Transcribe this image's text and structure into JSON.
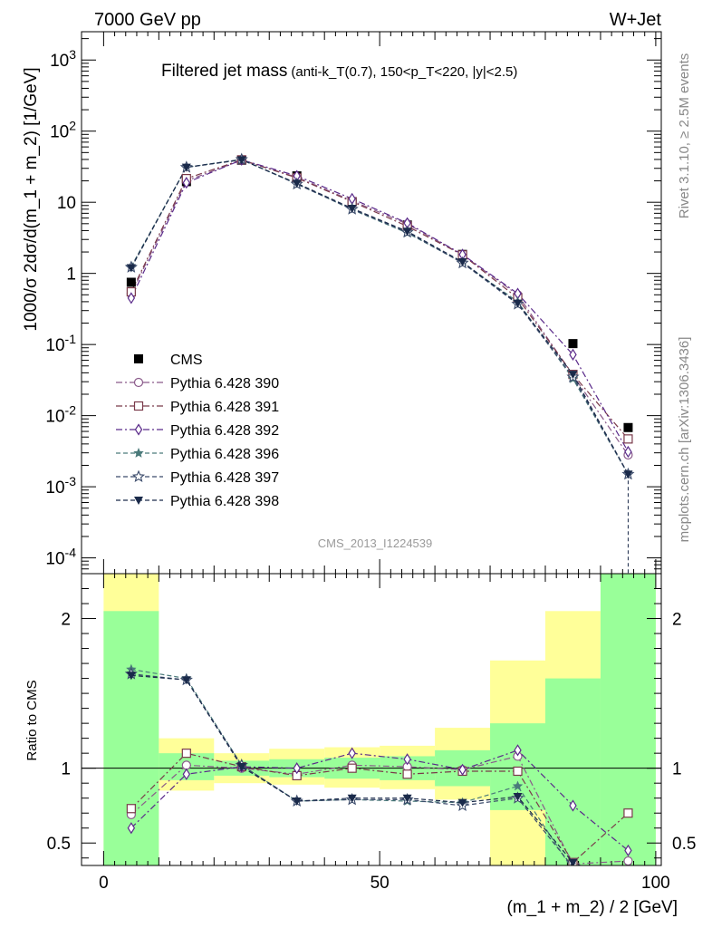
{
  "header": {
    "left": "7000 GeV pp",
    "right": "W+Jet"
  },
  "title": {
    "main": "Filtered jet mass",
    "sub": "(anti-k_T(0.7), 150<p_T<220, |y|<2.5)"
  },
  "side_labels": {
    "rivet": "Rivet 3.1.10, ≥ 2.5M events",
    "mcplots": "mcplots.cern.ch [arXiv:1306.3436]"
  },
  "analysis_id": "CMS_2013_I1224539",
  "colors": {
    "cms": "#000000",
    "p390": "#8a5a8a",
    "p391": "#7a3a4a",
    "p392": "#5a2a8a",
    "p396": "#4a7a7a",
    "p397": "#3a4a6a",
    "p398": "#1a2a4a",
    "band_inner": "#99ff99",
    "band_outer": "#ffff99"
  },
  "chart_data": [
    {
      "type": "line",
      "panel": "main",
      "ylabel": "1000/σ 2dσ/d(m_1 + m_2) [1/GeV]",
      "yscale": "log",
      "ylim": [
        6e-05,
        2500
      ],
      "xlim": [
        -4,
        101
      ],
      "ytick_labels": [
        "10^-4",
        "10^-3",
        "10^-2",
        "10^-1",
        "1",
        "10",
        "10^2",
        "10^3"
      ],
      "legend_position": "middle-left",
      "x": [
        5,
        15,
        25,
        35,
        45,
        55,
        65,
        75,
        85,
        95
      ],
      "series": [
        {
          "name": "CMS",
          "key": "cms",
          "marker": "square-filled",
          "values": [
            0.75,
            19.5,
            39,
            23.5,
            10.2,
            4.8,
            1.85,
            0.46,
            0.103,
            0.0068
          ]
        },
        {
          "name": "Pythia 6.428 390",
          "key": "p390",
          "marker": "circle-open",
          "values": [
            0.52,
            20,
            39,
            22.5,
            10.5,
            4.95,
            1.82,
            0.5,
            0.037,
            0.0028
          ]
        },
        {
          "name": "Pythia 6.428 391",
          "key": "p391",
          "marker": "square-open",
          "values": [
            0.55,
            21.5,
            39.5,
            22,
            10.2,
            4.6,
            1.82,
            0.45,
            0.038,
            0.0047
          ]
        },
        {
          "name": "Pythia 6.428 392",
          "key": "p392",
          "marker": "diamond-open",
          "values": [
            0.45,
            18.8,
            39.5,
            23.5,
            11.2,
            5.1,
            1.84,
            0.52,
            0.072,
            0.0031
          ]
        },
        {
          "name": "Pythia 6.428 396",
          "key": "p396",
          "marker": "star-filled",
          "values": [
            1.25,
            31,
            40,
            18.2,
            7.9,
            3.7,
            1.42,
            0.4,
            0.033,
            0.0015
          ]
        },
        {
          "name": "Pythia 6.428 397",
          "key": "p397",
          "marker": "star-open",
          "values": [
            1.22,
            31,
            40,
            18,
            8,
            3.8,
            1.4,
            0.37,
            0.035,
            0.0015
          ]
        },
        {
          "name": "Pythia 6.428 398",
          "key": "p398",
          "marker": "triangle-down-filled",
          "values": [
            1.2,
            31,
            39.5,
            18.5,
            8.2,
            3.9,
            1.45,
            0.38,
            0.038,
            0.0015
          ]
        }
      ]
    },
    {
      "type": "line",
      "panel": "ratio",
      "ylabel": "Ratio to CMS",
      "xlabel": "(m_1 + m_2) / 2 [GeV]",
      "ylim": [
        0.35,
        2.3
      ],
      "xlim": [
        -4,
        101
      ],
      "yticks": [
        0.5,
        1,
        2
      ],
      "ytick_labels": [
        "0.5",
        "1",
        "2"
      ],
      "xticks": [
        0,
        50,
        100
      ],
      "xtick_labels": [
        "0",
        "50",
        "100"
      ],
      "bands": {
        "edges": [
          0,
          10,
          20,
          30,
          40,
          50,
          60,
          70,
          80,
          90,
          100
        ],
        "inner": [
          [
            0.35,
            2.05
          ],
          [
            0.92,
            1.1
          ],
          [
            0.95,
            1.05
          ],
          [
            0.94,
            1.06
          ],
          [
            0.93,
            1.07
          ],
          [
            0.92,
            1.08
          ],
          [
            0.88,
            1.12
          ],
          [
            0.72,
            1.3
          ],
          [
            0.35,
            1.6
          ],
          [
            0.35,
            2.3
          ]
        ],
        "outer": [
          [
            0.35,
            2.3
          ],
          [
            0.85,
            1.2
          ],
          [
            0.9,
            1.1
          ],
          [
            0.89,
            1.13
          ],
          [
            0.87,
            1.14
          ],
          [
            0.86,
            1.15
          ],
          [
            0.79,
            1.27
          ],
          [
            0.35,
            1.72
          ],
          [
            0.35,
            2.05
          ],
          [
            0.45,
            2.3
          ]
        ]
      },
      "x": [
        5,
        15,
        25,
        35,
        45,
        55,
        65,
        75,
        85,
        95
      ],
      "series": [
        {
          "name": "Pythia 6.428 390",
          "key": "p390",
          "marker": "circle-open",
          "values": [
            0.69,
            1.02,
            1.0,
            0.96,
            1.02,
            1.01,
            0.99,
            1.08,
            0.36,
            0.38
          ]
        },
        {
          "name": "Pythia 6.428 391",
          "key": "p391",
          "marker": "square-open",
          "values": [
            0.73,
            1.1,
            1.01,
            0.95,
            1.0,
            0.96,
            0.98,
            0.98,
            0.37,
            0.7
          ]
        },
        {
          "name": "Pythia 6.428 392",
          "key": "p392",
          "marker": "diamond-open",
          "values": [
            0.6,
            0.96,
            1.01,
            1.0,
            1.1,
            1.06,
            0.99,
            1.12,
            0.75,
            0.45
          ]
        },
        {
          "name": "Pythia 6.428 396",
          "key": "p396",
          "marker": "star-filled",
          "values": [
            1.66,
            1.6,
            1.02,
            0.78,
            0.79,
            0.78,
            0.77,
            0.88,
            0.32,
            0.22
          ]
        },
        {
          "name": "Pythia 6.428 397",
          "key": "p397",
          "marker": "star-open",
          "values": [
            1.63,
            1.59,
            1.02,
            0.78,
            0.79,
            0.79,
            0.75,
            0.8,
            0.34,
            0.22
          ]
        },
        {
          "name": "Pythia 6.428 398",
          "key": "p398",
          "marker": "triangle-down-filled",
          "values": [
            1.62,
            1.59,
            1.01,
            0.78,
            0.8,
            0.8,
            0.77,
            0.81,
            0.37,
            0.22
          ]
        }
      ]
    }
  ]
}
